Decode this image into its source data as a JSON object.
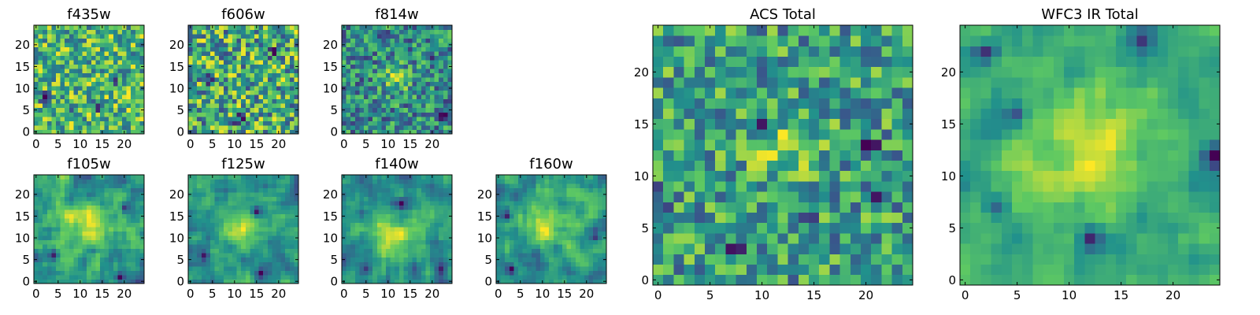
{
  "figure": {
    "background": "#ffffff",
    "colormap": "viridis",
    "colormap_stops": [
      "#440154",
      "#3b528b",
      "#21918c",
      "#5ec962",
      "#fde725"
    ]
  },
  "chart_data": [
    {
      "id": "f435w",
      "type": "heatmap",
      "title": "f435w",
      "grid": [
        25,
        25
      ],
      "xlim": [
        -0.5,
        24.5
      ],
      "ylim": [
        -0.5,
        24.5
      ],
      "xticks": [
        0,
        5,
        10,
        15,
        20
      ],
      "yticks": [
        0,
        5,
        10,
        15,
        20
      ],
      "seed": 11,
      "noise": 1.0,
      "blobs": [],
      "holes": [
        [
          14,
          6,
          0.9
        ],
        [
          7,
          4,
          0.8
        ],
        [
          2,
          8,
          0.9
        ],
        [
          9,
          17,
          0.8
        ],
        [
          18,
          12,
          0.7
        ]
      ]
    },
    {
      "id": "f606w",
      "type": "heatmap",
      "title": "f606w",
      "grid": [
        25,
        25
      ],
      "xlim": [
        -0.5,
        24.5
      ],
      "ylim": [
        -0.5,
        24.5
      ],
      "xticks": [
        0,
        5,
        10,
        15,
        20
      ],
      "yticks": [
        0,
        5,
        10,
        15,
        20
      ],
      "seed": 23,
      "noise": 1.0,
      "blobs": [],
      "holes": [
        [
          4,
          12,
          0.8
        ],
        [
          11,
          3,
          0.8
        ],
        [
          19,
          18,
          0.8
        ],
        [
          6,
          20,
          0.7
        ]
      ]
    },
    {
      "id": "f814w",
      "type": "heatmap",
      "title": "f814w",
      "grid": [
        25,
        25
      ],
      "xlim": [
        -0.5,
        24.5
      ],
      "ylim": [
        -0.5,
        24.5
      ],
      "xticks": [
        0,
        5,
        10,
        15,
        20
      ],
      "yticks": [
        0,
        5,
        10,
        15,
        20
      ],
      "seed": 37,
      "noise": 0.9,
      "blobs": [
        [
          12,
          12,
          2.2,
          0.9
        ]
      ],
      "holes": [
        [
          22,
          4,
          0.8
        ],
        [
          3,
          2,
          0.7
        ],
        [
          20,
          17,
          0.7
        ]
      ]
    },
    {
      "id": "f105w",
      "type": "heatmap",
      "title": "f105w",
      "grid": [
        25,
        25
      ],
      "xlim": [
        -0.5,
        24.5
      ],
      "ylim": [
        -0.5,
        24.5
      ],
      "xticks": [
        0,
        5,
        10,
        15,
        20
      ],
      "yticks": [
        0,
        5,
        10,
        15,
        20
      ],
      "seed": 41,
      "noise": 0.55,
      "smooth": true,
      "blobs": [
        [
          13,
          13,
          3.5,
          1.1
        ],
        [
          5,
          10,
          2.0,
          0.6
        ]
      ],
      "holes": [
        [
          19,
          1,
          0.8
        ],
        [
          4,
          6,
          0.7
        ],
        [
          20,
          17,
          0.6
        ]
      ]
    },
    {
      "id": "f125w",
      "type": "heatmap",
      "title": "f125w",
      "grid": [
        25,
        25
      ],
      "xlim": [
        -0.5,
        24.5
      ],
      "ylim": [
        -0.5,
        24.5
      ],
      "xticks": [
        0,
        5,
        10,
        15,
        20
      ],
      "yticks": [
        0,
        5,
        10,
        15,
        20
      ],
      "seed": 53,
      "noise": 0.55,
      "smooth": true,
      "blobs": [
        [
          12,
          12,
          3.5,
          1.0
        ],
        [
          4,
          18,
          2.0,
          0.5
        ]
      ],
      "holes": [
        [
          15,
          16,
          0.9
        ],
        [
          3,
          6,
          0.8
        ],
        [
          16,
          2,
          0.7
        ]
      ]
    },
    {
      "id": "f140w",
      "type": "heatmap",
      "title": "f140w",
      "grid": [
        25,
        25
      ],
      "xlim": [
        -0.5,
        24.5
      ],
      "ylim": [
        -0.5,
        24.5
      ],
      "xticks": [
        0,
        5,
        10,
        15,
        20
      ],
      "yticks": [
        0,
        5,
        10,
        15,
        20
      ],
      "seed": 67,
      "noise": 0.55,
      "smooth": true,
      "blobs": [
        [
          11,
          10,
          4.0,
          1.1
        ],
        [
          20,
          14,
          2.5,
          0.6
        ]
      ],
      "holes": [
        [
          13,
          18,
          0.8
        ],
        [
          5,
          3,
          0.7
        ],
        [
          22,
          3,
          0.6
        ]
      ]
    },
    {
      "id": "f160w",
      "type": "heatmap",
      "title": "f160w",
      "grid": [
        25,
        25
      ],
      "xlim": [
        -0.5,
        24.5
      ],
      "ylim": [
        -0.5,
        24.5
      ],
      "xticks": [
        0,
        5,
        10,
        15,
        20
      ],
      "yticks": [
        0,
        5,
        10,
        15,
        20
      ],
      "seed": 79,
      "noise": 0.55,
      "smooth": true,
      "blobs": [
        [
          11,
          13,
          3.5,
          1.1
        ],
        [
          19,
          20,
          2.0,
          0.6
        ]
      ],
      "holes": [
        [
          3,
          3,
          0.9
        ],
        [
          22,
          10,
          0.7
        ],
        [
          2,
          15,
          0.7
        ]
      ]
    },
    {
      "id": "acs-total",
      "type": "heatmap",
      "title": "ACS Total",
      "grid": [
        25,
        25
      ],
      "xlim": [
        -0.5,
        24.5
      ],
      "ylim": [
        -0.5,
        24.5
      ],
      "xticks": [
        0,
        5,
        10,
        15,
        20
      ],
      "yticks": [
        0,
        5,
        10,
        15,
        20
      ],
      "seed": 97,
      "noise": 0.95,
      "blobs": [
        [
          12,
          13,
          2.5,
          0.7
        ]
      ],
      "holes": [
        [
          21,
          8,
          1.0
        ],
        [
          14,
          6,
          1.0
        ],
        [
          7,
          3,
          0.9
        ],
        [
          0,
          8,
          0.9
        ],
        [
          10,
          15,
          0.9
        ],
        [
          20,
          13,
          0.9
        ]
      ]
    },
    {
      "id": "wfc3-ir-total",
      "type": "heatmap",
      "title": "WFC3 IR Total",
      "grid": [
        25,
        25
      ],
      "xlim": [
        -0.5,
        24.5
      ],
      "ylim": [
        -0.5,
        24.5
      ],
      "xticks": [
        0,
        5,
        10,
        15,
        20
      ],
      "yticks": [
        0,
        5,
        10,
        15,
        20
      ],
      "seed": 113,
      "noise": 0.45,
      "smooth": true,
      "blobs": [
        [
          12,
          12,
          3.5,
          1.2
        ],
        [
          5,
          11,
          1.5,
          0.5
        ],
        [
          24,
          5,
          1.5,
          0.6
        ]
      ],
      "holes": [
        [
          12,
          4,
          1.1
        ],
        [
          24,
          12,
          1.0
        ],
        [
          2,
          22,
          1.0
        ],
        [
          5,
          16,
          0.9
        ],
        [
          3,
          7,
          0.8
        ],
        [
          17,
          23,
          0.7
        ]
      ]
    }
  ]
}
